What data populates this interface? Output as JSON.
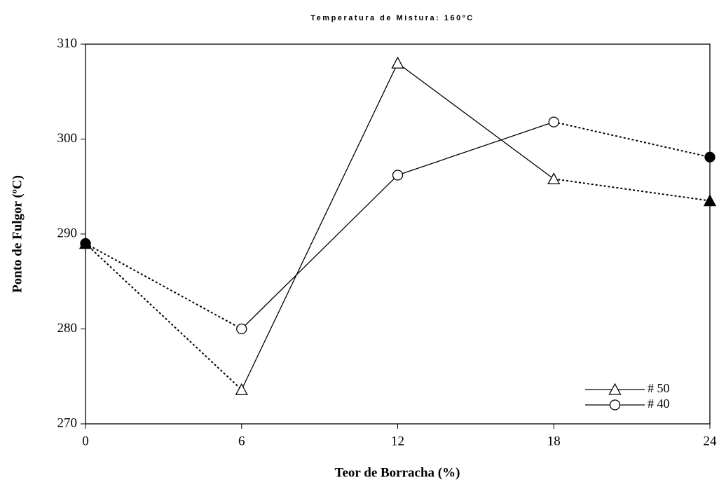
{
  "chart_data": {
    "type": "line",
    "title": "Temperatura de Mistura: 160ºC",
    "x_label": "Teor de Borracha (%)",
    "y_label": "Ponto de Fulgor (ºC)",
    "x": [
      0,
      6,
      12,
      18,
      24
    ],
    "series": [
      {
        "name": "# 50",
        "color": "#000000",
        "marker": "triangle",
        "values": [
          289,
          273.6,
          308,
          295.8,
          293.5
        ]
      },
      {
        "name": "# 40",
        "color": "#000000",
        "marker": "circle",
        "values": [
          289,
          280,
          296.2,
          301.8,
          298.1
        ]
      }
    ],
    "xlim": [
      0,
      24
    ],
    "xticks": [
      0,
      6,
      12,
      18,
      24
    ],
    "ylim": [
      270,
      310
    ],
    "yticks": [
      270,
      280,
      290,
      300,
      310
    ],
    "legend": "lower right"
  }
}
